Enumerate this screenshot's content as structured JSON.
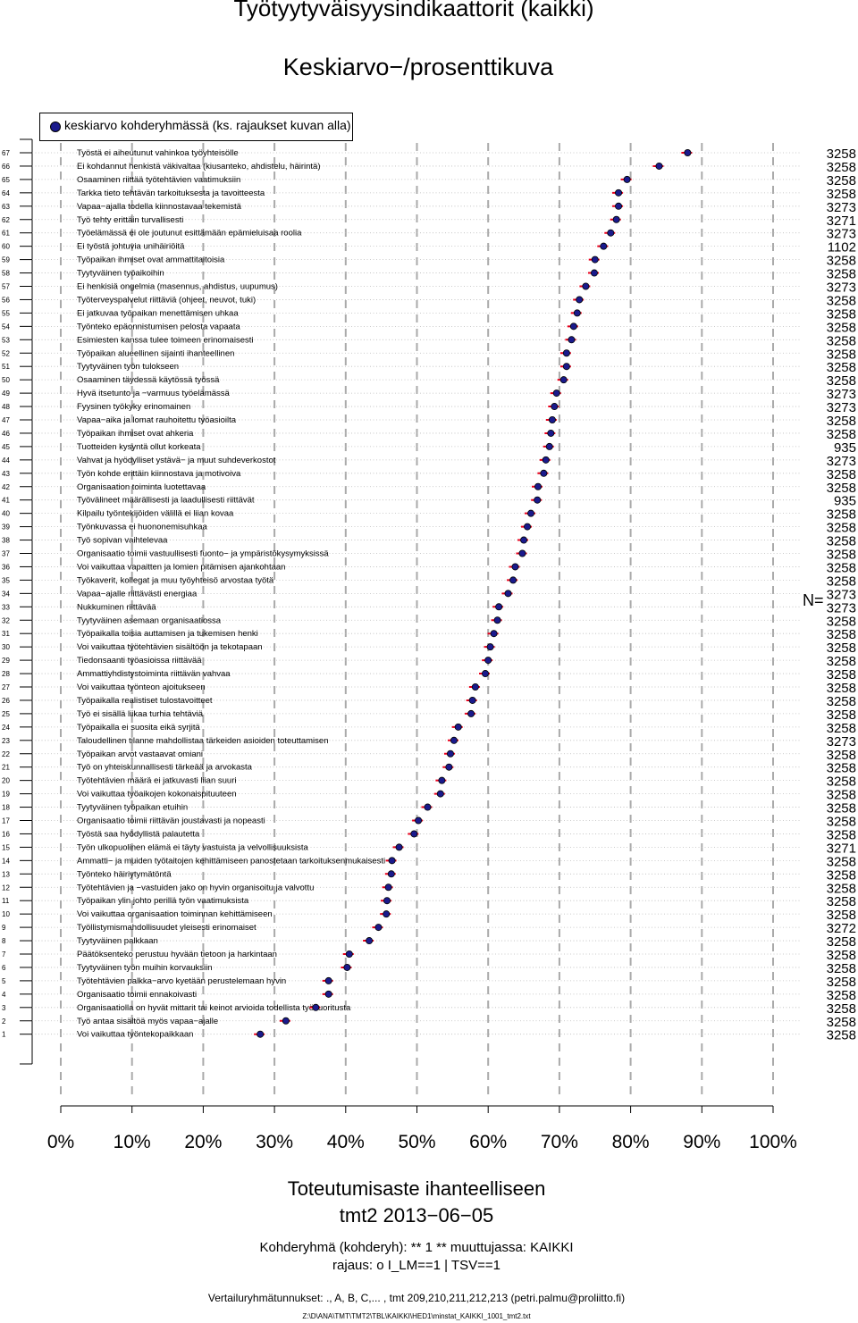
{
  "title": "Työtyytyväisyysindikaattorit (kaikki)",
  "subtitle": "Keskiarvo−/prosenttikuva",
  "legend": {
    "label": "keskiarvo kohderyhmässä (ks. rajaukset kuvan alla)",
    "color": "#1a1a8c"
  },
  "n_label": "N=",
  "footer": {
    "xlabel": "Toteutumisaste ihanteelliseen",
    "dataset": "tmt2 2013−06−05",
    "group": "Kohderyhmä (kohderyh): ** 1 ** muuttujassa:  KAIKKI",
    "filter": "rajaus:  o I_LM==1 | TSV==1",
    "comparison": "Vertailuryhmätunnukset: ., A, B, C,...    , tmt 209,210,211,212,213 (petri.palmu@proliitto.fi)",
    "file": "Z:\\D\\ANA\\TMT\\TMT2\\TBL\\KAIKKI\\HED1\\minstat_KAIKKI_1001_tmt2.txt"
  },
  "chart_data": {
    "type": "scatter",
    "xlim": [
      0,
      100
    ],
    "x_tick_labels": [
      "0%",
      "10%",
      "20%",
      "30%",
      "40%",
      "50%",
      "60%",
      "70%",
      "80%",
      "90%",
      "100%"
    ],
    "colors": {
      "point": "#1a1a8c",
      "interval": "#e8001c",
      "grid": "#aaaaaa"
    },
    "rows": [
      {
        "rank": "67",
        "label": "Työstä ei aiheutunut vahinkoa työyhteisölle",
        "value": 88.0,
        "n": "3258"
      },
      {
        "rank": "66",
        "label": "Ei kohdannut henkistä väkivaltaa (kiusanteko, ahdistelu, häirintä)",
        "value": 84.0,
        "n": "3258"
      },
      {
        "rank": "65",
        "label": "Osaaminen riittää työtehtävien vaatimuksiin",
        "value": 79.5,
        "n": "3258"
      },
      {
        "rank": "64",
        "label": "Tarkka tieto tehtävän tarkoituksesta ja tavoitteesta",
        "value": 78.3,
        "n": "3258"
      },
      {
        "rank": "63",
        "label": "Vapaa−ajalla todella kiinnostavaa tekemistä",
        "value": 78.3,
        "n": "3273"
      },
      {
        "rank": "62",
        "label": "Työ tehty erittäin turvallisesti",
        "value": 78.0,
        "n": "3271"
      },
      {
        "rank": "61",
        "label": "Työelämässä ei ole joutunut esittämään epämieluisaa roolia",
        "value": 77.2,
        "n": "3273"
      },
      {
        "rank": "60",
        "label": "Ei työstä johtuvia unihäiriöitä",
        "value": 76.2,
        "n": "1102"
      },
      {
        "rank": "59",
        "label": "Työpaikan ihmiset ovat ammattitaitoisia",
        "value": 75.0,
        "n": "3258"
      },
      {
        "rank": "58",
        "label": "Tyytyväinen työaikoihin",
        "value": 74.9,
        "n": "3258"
      },
      {
        "rank": "57",
        "label": "Ei henkisiä ongelmia (masennus, ahdistus, uupumus)",
        "value": 73.7,
        "n": "3273"
      },
      {
        "rank": "56",
        "label": "Työterveyspalvelut riittäviä (ohjeet, neuvot, tuki)",
        "value": 72.8,
        "n": "3258"
      },
      {
        "rank": "55",
        "label": "Ei jatkuvaa työpaikan menettämisen uhkaa",
        "value": 72.5,
        "n": "3258"
      },
      {
        "rank": "54",
        "label": "Työnteko epäonnistumisen pelosta vapaata",
        "value": 72.0,
        "n": "3258"
      },
      {
        "rank": "53",
        "label": "Esimiesten kanssa tulee toimeen erinomaisesti",
        "value": 71.7,
        "n": "3258"
      },
      {
        "rank": "52",
        "label": "Työpaikan alueellinen sijainti ihanteellinen",
        "value": 71.0,
        "n": "3258"
      },
      {
        "rank": "51",
        "label": "Tyytyväinen työn tulokseen",
        "value": 71.0,
        "n": "3258"
      },
      {
        "rank": "50",
        "label": "Osaaminen täydessä käytössä työssä",
        "value": 70.6,
        "n": "3258"
      },
      {
        "rank": "49",
        "label": "Hyvä itsetunto ja −varmuus työelämässä",
        "value": 69.6,
        "n": "3273"
      },
      {
        "rank": "48",
        "label": "Fyysinen työkyky erinomainen",
        "value": 69.3,
        "n": "3273"
      },
      {
        "rank": "47",
        "label": "Vapaa−aika ja lomat rauhoitettu työasioilta",
        "value": 69.0,
        "n": "3258"
      },
      {
        "rank": "46",
        "label": "Työpaikan ihmiset ovat ahkeria",
        "value": 68.8,
        "n": "3258"
      },
      {
        "rank": "45",
        "label": "Tuotteiden kysyntä ollut korkeata",
        "value": 68.6,
        "n": "935"
      },
      {
        "rank": "44",
        "label": "Vahvat ja hyödylliset ystävä− ja muut suhdeverkostot",
        "value": 68.1,
        "n": "3273"
      },
      {
        "rank": "43",
        "label": "Työn kohde erittäin kiinnostava ja motivoiva",
        "value": 67.8,
        "n": "3258"
      },
      {
        "rank": "42",
        "label": "Organisaation toiminta luotettavaa",
        "value": 67.0,
        "n": "3258"
      },
      {
        "rank": "41",
        "label": "Työvälineet määrällisesti ja laadullisesti riittävät",
        "value": 66.9,
        "n": "935"
      },
      {
        "rank": "40",
        "label": "Kilpailu työntekijöiden välillä ei liian kovaa",
        "value": 66.0,
        "n": "3258"
      },
      {
        "rank": "39",
        "label": "Työnkuvassa ei huononemisuhkaa",
        "value": 65.5,
        "n": "3258"
      },
      {
        "rank": "38",
        "label": "Työ sopivan vaihtelevaa",
        "value": 65.0,
        "n": "3258"
      },
      {
        "rank": "37",
        "label": "Organisaatio toimii vastuullisesti fuonto− ja ympäristökysymyksissä",
        "value": 64.8,
        "n": "3258"
      },
      {
        "rank": "36",
        "label": "Voi vaikuttaa vapaitten ja lomien pitämisen ajankohtaan",
        "value": 63.8,
        "n": "3258"
      },
      {
        "rank": "35",
        "label": "Työkaverit, kollegat ja muu työyhteisö arvostaa työtä",
        "value": 63.5,
        "n": "3258"
      },
      {
        "rank": "34",
        "label": "Vapaa−ajalle riittävästi energiaa",
        "value": 62.8,
        "n": "3273"
      },
      {
        "rank": "33",
        "label": "Nukkuminen riittävää",
        "value": 61.5,
        "n": "3273"
      },
      {
        "rank": "32",
        "label": "Tyytyväinen asemaan organisaatiossa",
        "value": 61.3,
        "n": "3258"
      },
      {
        "rank": "31",
        "label": "Työpaikalla toisia auttamisen ja tukemisen henki",
        "value": 60.8,
        "n": "3258"
      },
      {
        "rank": "30",
        "label": "Voi vaikuttaa työtehtävien sisältöön ja tekotapaan",
        "value": 60.3,
        "n": "3258"
      },
      {
        "rank": "29",
        "label": "Tiedonsaanti työasioissa riittävää",
        "value": 60.0,
        "n": "3258"
      },
      {
        "rank": "28",
        "label": "Ammattiyhdistystoiminta riittävän vahvaa",
        "value": 59.6,
        "n": "3258"
      },
      {
        "rank": "27",
        "label": "Voi vaikuttaa työnteon ajoitukseen",
        "value": 58.2,
        "n": "3258"
      },
      {
        "rank": "26",
        "label": "Työpaikalla realistiset tulostavoitteet",
        "value": 57.8,
        "n": "3258"
      },
      {
        "rank": "25",
        "label": "Työ ei sisällä liikaa turhia tehtäviä",
        "value": 57.6,
        "n": "3258"
      },
      {
        "rank": "24",
        "label": "Työpaikalla ei suosita eikä syrjitä",
        "value": 55.8,
        "n": "3258"
      },
      {
        "rank": "23",
        "label": "Taloudellinen tilanne mahdollistaa tärkeiden asioiden toteuttamisen",
        "value": 55.2,
        "n": "3273"
      },
      {
        "rank": "22",
        "label": "Työpaikan arvot vastaavat omiani",
        "value": 54.7,
        "n": "3258"
      },
      {
        "rank": "21",
        "label": "Työ on yhteiskunnallisesti tärkeää ja arvokasta",
        "value": 54.5,
        "n": "3258"
      },
      {
        "rank": "20",
        "label": "Työtehtävien määrä ei jatkuvasti liian suuri",
        "value": 53.5,
        "n": "3258"
      },
      {
        "rank": "19",
        "label": "Voi vaikuttaa työaikojen kokonaispituuteen",
        "value": 53.3,
        "n": "3258"
      },
      {
        "rank": "18",
        "label": "Tyytyväinen työpaikan etuihin",
        "value": 51.5,
        "n": "3258"
      },
      {
        "rank": "17",
        "label": "Organisaatio toimii riittävän joustavasti ja nopeasti",
        "value": 50.2,
        "n": "3258"
      },
      {
        "rank": "16",
        "label": "Työstä saa hyödyllistä palautetta",
        "value": 49.6,
        "n": "3258"
      },
      {
        "rank": "15",
        "label": "Työn ulkopuolinen elämä ei täyty vastuista ja velvollisuuksista",
        "value": 47.5,
        "n": "3271"
      },
      {
        "rank": "14",
        "label": "Ammatti− ja muiden työtaitojen kehittämiseen panostetaan tarkoituksenmukaisesti",
        "value": 46.5,
        "n": "3258"
      },
      {
        "rank": "13",
        "label": "Työnteko häiriytymätöntä",
        "value": 46.4,
        "n": "3258"
      },
      {
        "rank": "12",
        "label": "Työtehtävien ja −vastuiden jako on hyvin organisoitu ja valvottu",
        "value": 46.0,
        "n": "3258"
      },
      {
        "rank": "11",
        "label": "Työpaikan ylin johto perillä työn vaatimuksista",
        "value": 45.8,
        "n": "3258"
      },
      {
        "rank": "10",
        "label": "Voi vaikuttaa organisaation toiminnan kehittämiseen",
        "value": 45.7,
        "n": "3258"
      },
      {
        "rank": "9",
        "label": "Työllistymismahdollisuudet yleisesti erinomaiset",
        "value": 44.6,
        "n": "3272"
      },
      {
        "rank": "8",
        "label": "Tyytyväinen palkkaan",
        "value": 43.3,
        "n": "3258"
      },
      {
        "rank": "7",
        "label": "Päätöksenteko perustuu hyvään tietoon ja harkintaan",
        "value": 40.5,
        "n": "3258"
      },
      {
        "rank": "6",
        "label": "Tyytyväinen työn muihin korvauksiin",
        "value": 40.2,
        "n": "3258"
      },
      {
        "rank": "5",
        "label": "Työtehtävien palkka−arvo kyetään perustelemaan hyvin",
        "value": 37.6,
        "n": "3258"
      },
      {
        "rank": "4",
        "label": "Organisaatio toimii ennakoivasti",
        "value": 37.6,
        "n": "3258"
      },
      {
        "rank": "3",
        "label": "Organisaatiolla on hyvät mittarit tai keinot arvioida todellista työsuoritusta",
        "value": 35.8,
        "n": "3258"
      },
      {
        "rank": "2",
        "label": "Työ antaa sisältöä myös vapaa−ajalle",
        "value": 31.6,
        "n": "3258"
      },
      {
        "rank": "1",
        "label": "Voi vaikuttaa työntekopaikkaan",
        "value": 28.0,
        "n": "3258"
      }
    ]
  }
}
